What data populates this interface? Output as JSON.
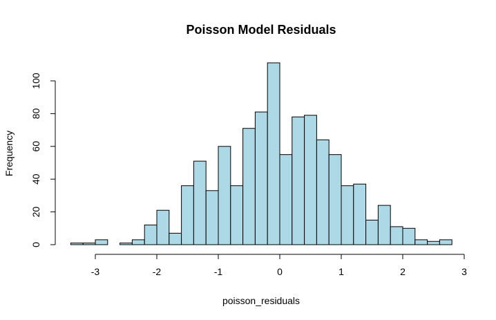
{
  "chart_data": {
    "type": "bar",
    "title": "Poisson Model Residuals",
    "xlabel": "poisson_residuals",
    "ylabel": "Frequency",
    "bar_fill": "#add8e6",
    "bar_stroke": "#000000",
    "xlim": [
      -3.4,
      2.8
    ],
    "ylim": [
      0,
      111
    ],
    "xticks": [
      -3,
      -2,
      -1,
      0,
      1,
      2,
      3
    ],
    "yticks": [
      0,
      20,
      40,
      60,
      80,
      100
    ],
    "bin_edges": [
      -3.4,
      -3.2,
      -3.0,
      -2.8,
      -2.6,
      -2.4,
      -2.2,
      -2.0,
      -1.8,
      -1.6,
      -1.4,
      -1.2,
      -1.0,
      -0.8,
      -0.6,
      -0.4,
      -0.2,
      0.0,
      0.2,
      0.4,
      0.6,
      0.8,
      1.0,
      1.2,
      1.4,
      1.6,
      1.8,
      2.0,
      2.2,
      2.4,
      2.6,
      2.8
    ],
    "values": [
      1,
      1,
      3,
      0,
      1,
      3,
      12,
      21,
      7,
      36,
      51,
      33,
      60,
      36,
      71,
      81,
      111,
      55,
      78,
      79,
      64,
      55,
      36,
      37,
      15,
      24,
      11,
      10,
      3,
      2,
      3
    ]
  }
}
